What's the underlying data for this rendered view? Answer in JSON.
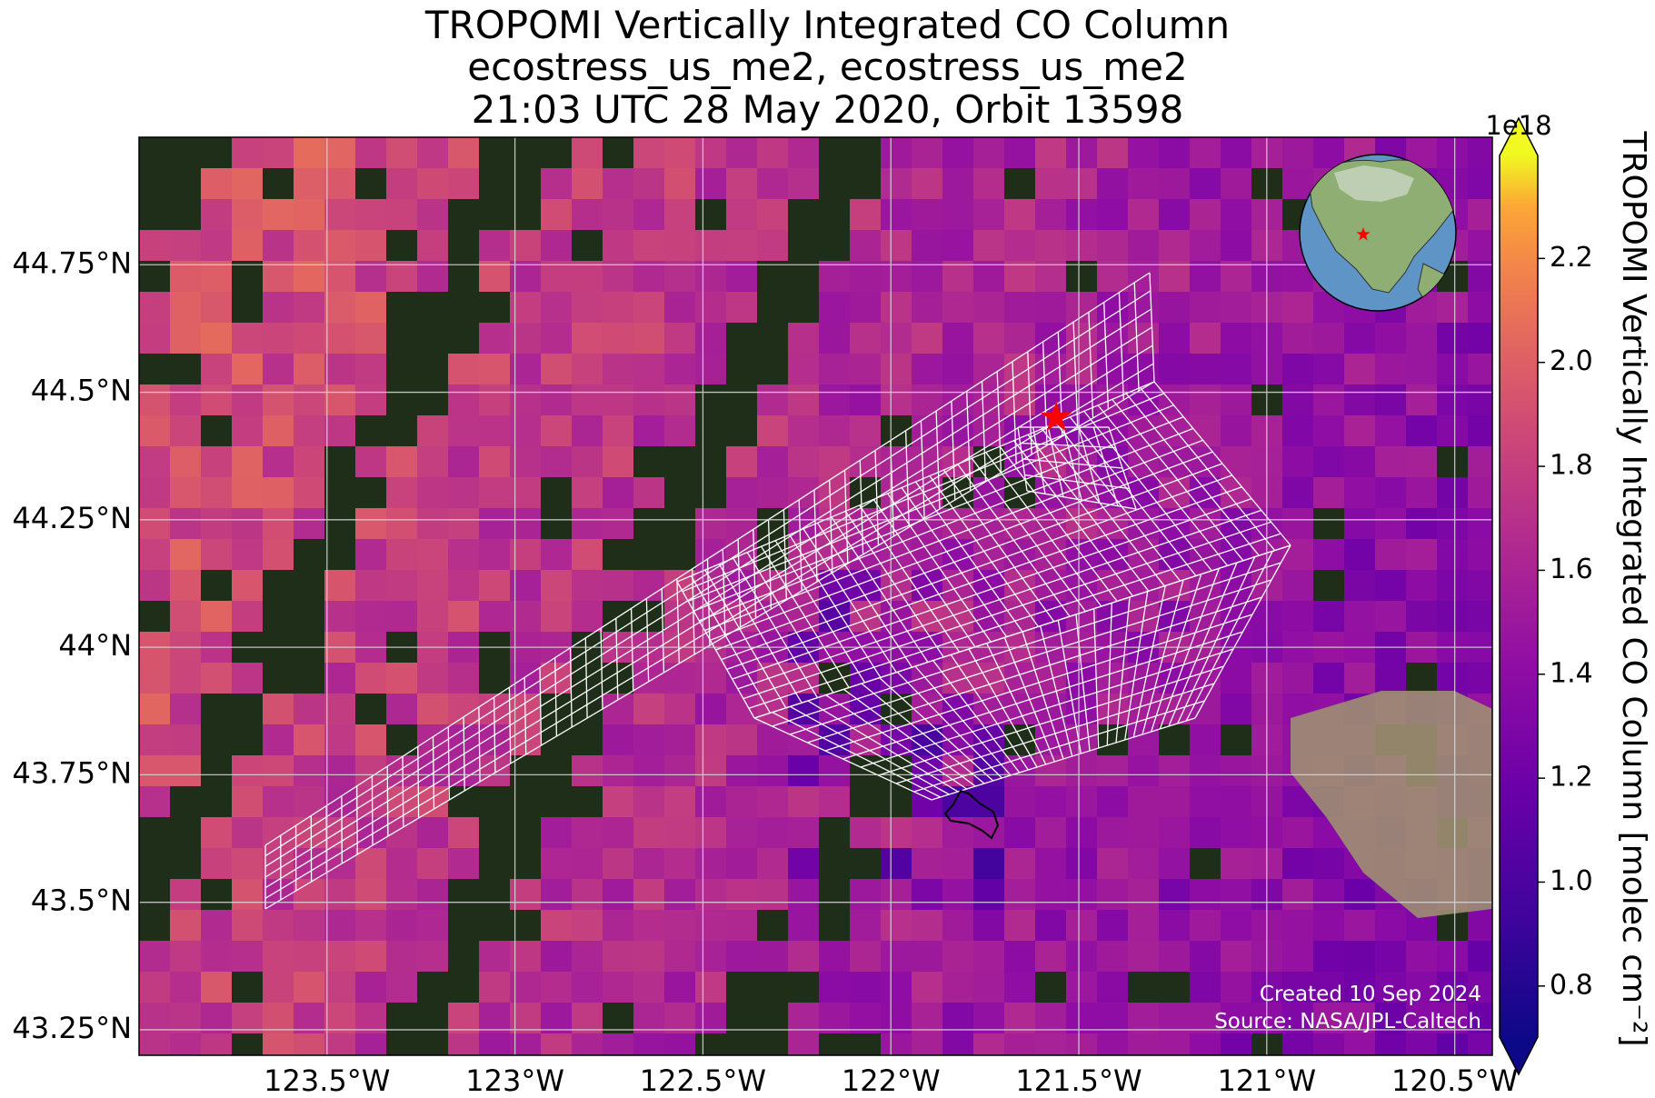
{
  "title": {
    "line1": "TROPOMI Vertically Integrated CO Column",
    "line2": "ecostress_us_me2, ecostress_us_me2",
    "line3": "21:03 UTC 28 May 2020, Orbit 13598"
  },
  "map": {
    "lon_range": [
      -124.0,
      -120.4
    ],
    "lat_range": [
      43.2,
      45.0
    ],
    "lat_ticks": [
      "44.75°N",
      "44.5°N",
      "44.25°N",
      "44°N",
      "43.75°N",
      "43.5°N",
      "43.25°N"
    ],
    "lat_tick_values": [
      44.75,
      44.5,
      44.25,
      44.0,
      43.75,
      43.5,
      43.25
    ],
    "lon_ticks": [
      "123.5°W",
      "123°W",
      "122.5°W",
      "122°W",
      "121.5°W",
      "121°W",
      "120.5°W"
    ],
    "lon_tick_values": [
      -123.5,
      -123.0,
      -122.5,
      -122.0,
      -121.5,
      -121.0,
      -120.5
    ],
    "site_marker": {
      "lon": -121.56,
      "lat": 44.45,
      "color": "#ff0000",
      "shape": "star"
    },
    "grid": true
  },
  "colorbar": {
    "label": "TROPOMI Vertically Integrated CO Column [molec cm$^{-2}$]",
    "label_display": "TROPOMI Vertically Integrated CO Column [molec cm⁻²]",
    "scale_label": "1e18",
    "range": [
      0.7,
      2.4
    ],
    "ticks": [
      "0.8",
      "1.0",
      "1.2",
      "1.4",
      "1.6",
      "1.8",
      "2.0",
      "2.2"
    ],
    "tick_values": [
      0.8,
      1.0,
      1.2,
      1.4,
      1.6,
      1.8,
      2.0,
      2.2
    ],
    "colormap": "plasma",
    "extend": "both"
  },
  "inset": {
    "type": "globe-locator",
    "marker_color": "#ff0000"
  },
  "footer": {
    "created": "Created 10 Sep 2024",
    "source": "Source: NASA/JPL-Caltech"
  }
}
